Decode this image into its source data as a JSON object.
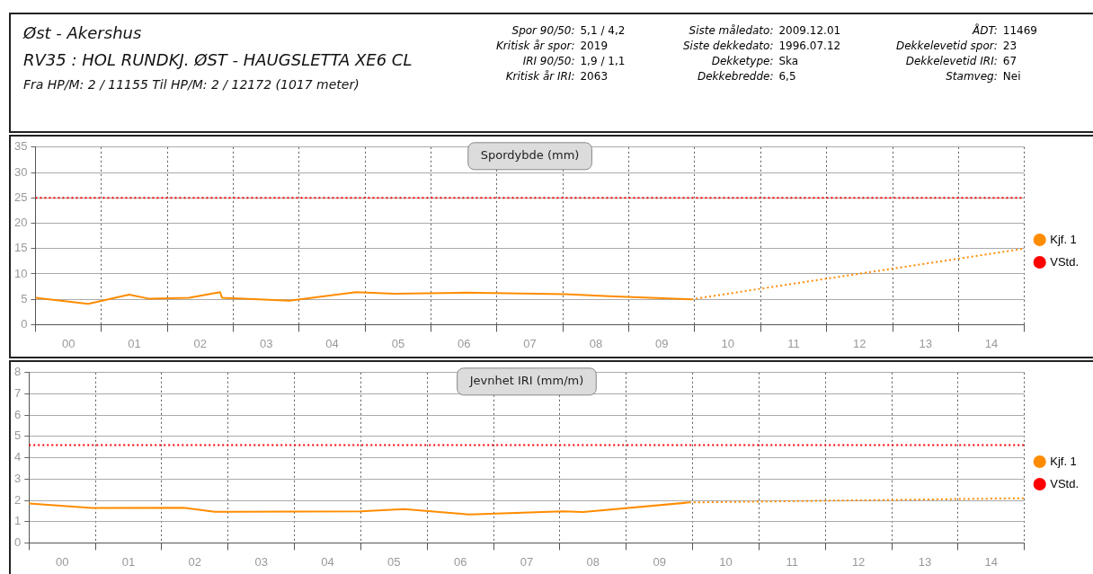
{
  "chart_data": [
    {
      "type": "other",
      "title": "Øst - Akershus",
      "subtitle": "RV35 : HOL RUNDKJ. ØST - HAUGSLETTA XE6 CL",
      "annotations": [
        "Fra HP/M: 2 / 11155 Til HP/M: 2 / 12172 (1017 meter)",
        "Spor 90/50:",
        "5,1 / 4,2",
        "Kritisk år spor:",
        "2019",
        "IRI 90/50:",
        "1,9 / 1,1",
        "Kritisk år IRI:",
        "2063",
        "Siste måledato:",
        "2009.12.01",
        "Siste dekkedato:",
        "1996.07.12",
        "Dekketype:",
        "Ska",
        "Dekkebredde:",
        "6,5",
        "ÅDT:",
        "11469",
        "Dekkelevetid spor:",
        "23",
        "Dekkelevetid IRI:",
        "67",
        "Stamveg:",
        "Nei"
      ]
    },
    {
      "type": "line",
      "title": "Spordybde (mm)",
      "legend": "right",
      "grid": true,
      "marker": "none",
      "xlim": [
        -0.5,
        14.5
      ],
      "ylim": [
        0,
        35
      ],
      "yticks": [
        0,
        5,
        10,
        15,
        20,
        25,
        30,
        35
      ],
      "xticks": [
        {
          "value": -0.5,
          "label": null
        },
        {
          "value": 0,
          "label": "00"
        },
        {
          "value": 0.5,
          "label": null
        },
        {
          "value": 1,
          "label": "01"
        },
        {
          "value": 1.5,
          "label": null
        },
        {
          "value": 2,
          "label": "02"
        },
        {
          "value": 2.5,
          "label": null
        },
        {
          "value": 3,
          "label": "03"
        },
        {
          "value": 3.5,
          "label": null
        },
        {
          "value": 4,
          "label": "04"
        },
        {
          "value": 4.5,
          "label": null
        },
        {
          "value": 5,
          "label": "05"
        },
        {
          "value": 5.5,
          "label": null
        },
        {
          "value": 6,
          "label": "06"
        },
        {
          "value": 6.5,
          "label": null
        },
        {
          "value": 7,
          "label": "07"
        },
        {
          "value": 7.5,
          "label": null
        },
        {
          "value": 8,
          "label": "08"
        },
        {
          "value": 8.5,
          "label": null
        },
        {
          "value": 9,
          "label": "09"
        },
        {
          "value": 9.5,
          "label": null
        },
        {
          "value": 10,
          "label": "10"
        },
        {
          "value": 10.5,
          "label": null
        },
        {
          "value": 11,
          "label": "11"
        },
        {
          "value": 11.5,
          "label": null
        },
        {
          "value": 12,
          "label": "12"
        },
        {
          "value": 12.5,
          "label": null
        },
        {
          "value": 13,
          "label": "13"
        },
        {
          "value": 13.5,
          "label": null
        },
        {
          "value": 14,
          "label": "14"
        },
        {
          "value": 14.5,
          "label": null
        }
      ],
      "series": [
        {
          "name": "Kjf. 1",
          "color": "#ff8c00",
          "line_style": "solid",
          "x": [
            -0.5,
            0.3,
            0.92,
            1.23,
            1.83,
            2.3,
            2.33,
            3.35,
            4.36,
            4.95,
            6.02,
            7.54,
            8.2,
            9.45
          ],
          "values": [
            5.3,
            4.1,
            5.9,
            5.1,
            5.3,
            6.4,
            5.3,
            4.7,
            6.4,
            6.1,
            6.3,
            6.0,
            5.6,
            5.0
          ]
        },
        {
          "name": null,
          "color": "#ff8c00",
          "line_style": "dotted",
          "x": [
            9.45,
            14.5
          ],
          "values": [
            5.0,
            15
          ]
        },
        {
          "name": "VStd.",
          "color": "#ff0000",
          "line_style": "dotted",
          "x": [
            -0.5,
            14.5
          ],
          "values": [
            25,
            25
          ]
        }
      ]
    },
    {
      "type": "line",
      "title": "Jevnhet IRI (mm/m)",
      "legend": "right",
      "grid": true,
      "marker": "none",
      "xlim": [
        -0.5,
        14.5
      ],
      "ylim": [
        0,
        8
      ],
      "yticks": [
        0,
        1,
        2,
        3,
        4,
        5,
        6,
        7,
        8
      ],
      "xticks": [
        {
          "value": -0.5,
          "label": null
        },
        {
          "value": 0,
          "label": "00"
        },
        {
          "value": 0.5,
          "label": null
        },
        {
          "value": 1,
          "label": "01"
        },
        {
          "value": 1.5,
          "label": null
        },
        {
          "value": 2,
          "label": "02"
        },
        {
          "value": 2.5,
          "label": null
        },
        {
          "value": 3,
          "label": "03"
        },
        {
          "value": 3.5,
          "label": null
        },
        {
          "value": 4,
          "label": "04"
        },
        {
          "value": 4.5,
          "label": null
        },
        {
          "value": 5,
          "label": "05"
        },
        {
          "value": 5.5,
          "label": null
        },
        {
          "value": 6,
          "label": "06"
        },
        {
          "value": 6.5,
          "label": null
        },
        {
          "value": 7,
          "label": "07"
        },
        {
          "value": 7.5,
          "label": null
        },
        {
          "value": 8,
          "label": "08"
        },
        {
          "value": 8.5,
          "label": null
        },
        {
          "value": 9,
          "label": "09"
        },
        {
          "value": 9.5,
          "label": null
        },
        {
          "value": 10,
          "label": "10"
        },
        {
          "value": 10.5,
          "label": null
        },
        {
          "value": 11,
          "label": "11"
        },
        {
          "value": 11.5,
          "label": null
        },
        {
          "value": 12,
          "label": "12"
        },
        {
          "value": 12.5,
          "label": null
        },
        {
          "value": 13,
          "label": "13"
        },
        {
          "value": 13.5,
          "label": null
        },
        {
          "value": 14,
          "label": "14"
        },
        {
          "value": 14.5,
          "label": null
        }
      ],
      "series": [
        {
          "name": "Kjf. 1",
          "color": "#ff8c00",
          "line_style": "solid",
          "x": [
            -0.5,
            0.45,
            1.83,
            2.3,
            4.5,
            5.15,
            6.13,
            7.54,
            7.85,
            9.45
          ],
          "values": [
            1.85,
            1.64,
            1.65,
            1.46,
            1.48,
            1.59,
            1.34,
            1.48,
            1.45,
            1.9
          ]
        },
        {
          "name": null,
          "color": "#ff8c00",
          "line_style": "dotted",
          "x": [
            9.45,
            14.5
          ],
          "values": [
            1.9,
            2.1
          ]
        },
        {
          "name": "VStd.",
          "color": "#ff0000",
          "line_style": "dotted",
          "x": [
            -0.5,
            14.5
          ],
          "values": [
            4.6,
            4.6
          ]
        }
      ]
    }
  ]
}
